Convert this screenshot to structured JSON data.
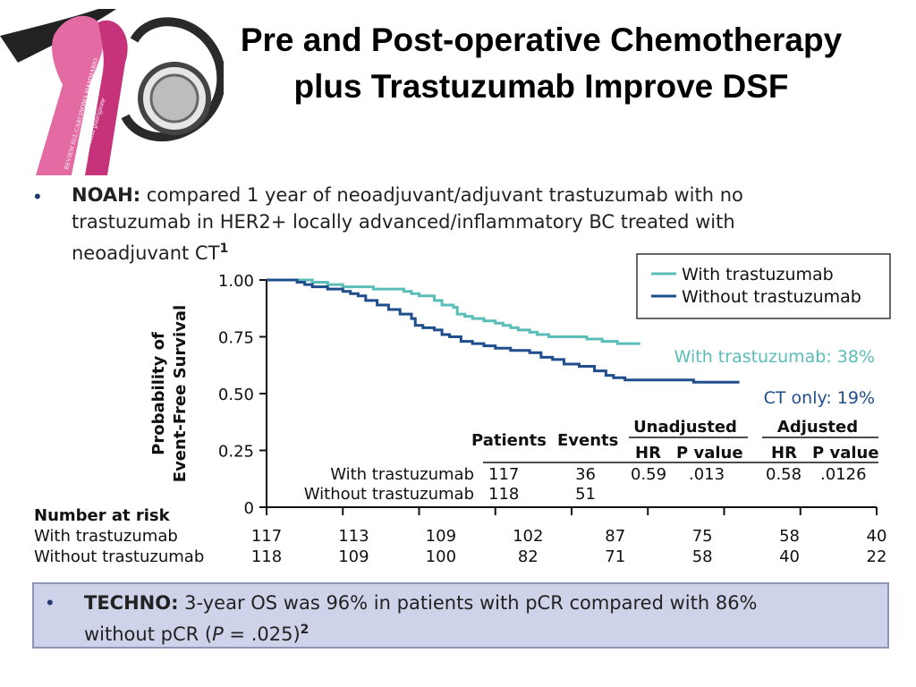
{
  "title": {
    "line1": "Pre and Post-operative Chemotherapy",
    "line2": "plus Trastuzumab Improve DSF"
  },
  "logo": {
    "ribbon_text_1": "REVIEW SUL CARCINOMA MAMMARIO",
    "ribbon_text_2": "un passo dalla guarigione",
    "ribbon_color": "#d9488b"
  },
  "noah": {
    "label": "NOAH:",
    "text_line1": " compared 1 year of neoadjuvant/adjuvant trastuzumab with no",
    "text_line2": "trastuzumab in HER2+ locally advanced/inflammatory BC treated with",
    "text_line3": "neoadjuvant CT",
    "superscript": "1"
  },
  "chart_data": {
    "type": "line",
    "ylabel_line1": "Probability of",
    "ylabel_line2": "Event-Free Survival",
    "ylim": [
      0,
      1.0
    ],
    "yticks": [
      "0",
      "0.25",
      "0.50",
      "0.75",
      "1.00"
    ],
    "xlim": [
      0,
      8
    ],
    "xticks": [
      0,
      1,
      2,
      3,
      4,
      5,
      6,
      7,
      8
    ],
    "legend_position": "top-right",
    "series": [
      {
        "name": "With trastuzumab",
        "color": "#5bbdb8",
        "step": [
          [
            0,
            1.0
          ],
          [
            0.4,
            1.0
          ],
          [
            0.6,
            0.99
          ],
          [
            0.8,
            0.98
          ],
          [
            1.0,
            0.97
          ],
          [
            1.4,
            0.96
          ],
          [
            1.7,
            0.96
          ],
          [
            1.8,
            0.95
          ],
          [
            1.9,
            0.94
          ],
          [
            2.0,
            0.93
          ],
          [
            2.1,
            0.93
          ],
          [
            2.2,
            0.91
          ],
          [
            2.3,
            0.89
          ],
          [
            2.45,
            0.88
          ],
          [
            2.5,
            0.85
          ],
          [
            2.6,
            0.84
          ],
          [
            2.7,
            0.83
          ],
          [
            2.85,
            0.82
          ],
          [
            3.0,
            0.81
          ],
          [
            3.1,
            0.8
          ],
          [
            3.2,
            0.79
          ],
          [
            3.3,
            0.78
          ],
          [
            3.45,
            0.77
          ],
          [
            3.55,
            0.76
          ],
          [
            3.7,
            0.75
          ],
          [
            4.0,
            0.75
          ],
          [
            4.2,
            0.74
          ],
          [
            4.4,
            0.73
          ],
          [
            4.6,
            0.72
          ],
          [
            4.9,
            0.72
          ]
        ]
      },
      {
        "name": "Without trastuzumab",
        "color": "#1f4e8c",
        "step": [
          [
            0,
            1.0
          ],
          [
            0.35,
            1.0
          ],
          [
            0.4,
            0.99
          ],
          [
            0.5,
            0.98
          ],
          [
            0.6,
            0.97
          ],
          [
            0.8,
            0.96
          ],
          [
            1.0,
            0.95
          ],
          [
            1.1,
            0.94
          ],
          [
            1.2,
            0.93
          ],
          [
            1.3,
            0.91
          ],
          [
            1.45,
            0.89
          ],
          [
            1.6,
            0.87
          ],
          [
            1.75,
            0.85
          ],
          [
            1.9,
            0.83
          ],
          [
            1.95,
            0.8
          ],
          [
            2.05,
            0.79
          ],
          [
            2.2,
            0.78
          ],
          [
            2.3,
            0.76
          ],
          [
            2.4,
            0.75
          ],
          [
            2.55,
            0.73
          ],
          [
            2.7,
            0.72
          ],
          [
            2.85,
            0.71
          ],
          [
            3.0,
            0.7
          ],
          [
            3.2,
            0.69
          ],
          [
            3.45,
            0.68
          ],
          [
            3.6,
            0.66
          ],
          [
            3.75,
            0.65
          ],
          [
            3.9,
            0.63
          ],
          [
            4.1,
            0.62
          ],
          [
            4.3,
            0.6
          ],
          [
            4.45,
            0.58
          ],
          [
            4.55,
            0.57
          ],
          [
            4.7,
            0.56
          ],
          [
            5.2,
            0.56
          ],
          [
            5.6,
            0.55
          ],
          [
            6.2,
            0.55
          ]
        ]
      }
    ],
    "annotations": [
      {
        "text": "With trastuzumab: 38%",
        "color": "#5bbdb8"
      },
      {
        "text": "CT only:  19%",
        "color": "#1f4e8c"
      }
    ],
    "stats_table": {
      "headers": [
        "Patients",
        "Events",
        "Unadjusted",
        "Adjusted"
      ],
      "subheaders": [
        "HR",
        "P value",
        "HR",
        "P value"
      ],
      "rows": [
        {
          "group": "With trastuzumab",
          "patients": "117",
          "events": "36",
          "hr_unadj": "0.59",
          "p_unadj": ".013",
          "hr_adj": "0.58",
          "p_adj": ".0126"
        },
        {
          "group": "Without trastuzumab",
          "patients": "118",
          "events": "51",
          "hr_unadj": "",
          "p_unadj": "",
          "hr_adj": "",
          "p_adj": ""
        }
      ]
    },
    "risk_table": {
      "title": "Number at risk",
      "rows": [
        {
          "label": "With trastuzumab",
          "values": [
            "117",
            "113",
            "109",
            "102",
            "87",
            "75",
            "58",
            "40"
          ]
        },
        {
          "label": "Without trastuzumab",
          "values": [
            "118",
            "109",
            "100",
            "82",
            "71",
            "58",
            "40",
            "22"
          ]
        }
      ]
    }
  },
  "techno": {
    "label": "TECHNO:",
    "text_line1": " 3-year OS was 96% in patients with pCR compared with 86%",
    "text_line2_pre": "without pCR (",
    "text_line2_italic": "P",
    "text_line2_post": " = .025)",
    "superscript": "2"
  }
}
